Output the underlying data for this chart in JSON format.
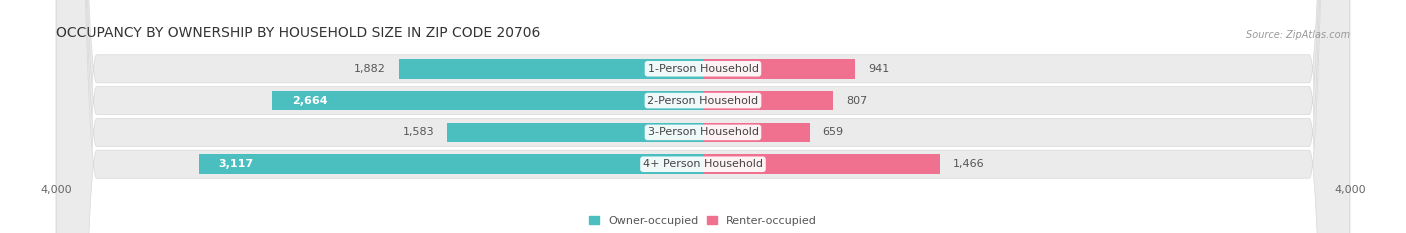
{
  "title": "OCCUPANCY BY OWNERSHIP BY HOUSEHOLD SIZE IN ZIP CODE 20706",
  "source": "Source: ZipAtlas.com",
  "categories": [
    "1-Person Household",
    "2-Person Household",
    "3-Person Household",
    "4+ Person Household"
  ],
  "owner_values": [
    1882,
    2664,
    1583,
    3117
  ],
  "renter_values": [
    941,
    807,
    659,
    1466
  ],
  "owner_color": "#4bbfbf",
  "renter_color": "#f07090",
  "owner_color_dark": "#2ea8a8",
  "renter_color_dark": "#e85580",
  "background_color": "#ffffff",
  "row_bg_color": "#ebebeb",
  "row_edge_color": "#d8d8d8",
  "xlim": 4000,
  "title_fontsize": 10,
  "label_fontsize": 8,
  "value_fontsize": 8,
  "tick_fontsize": 8,
  "legend_fontsize": 8,
  "source_fontsize": 7
}
